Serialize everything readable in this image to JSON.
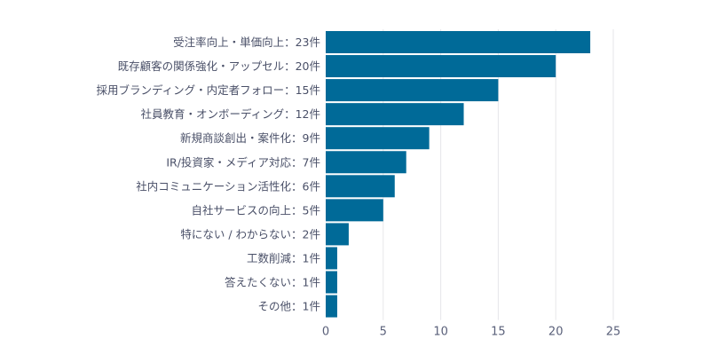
{
  "chart_data": {
    "type": "bar",
    "orientation": "horizontal",
    "title": "",
    "xlabel": "",
    "ylabel": "",
    "categories": [
      "受注率向上・単価向上：23件",
      "既存顧客の関係強化・アップセル：20件",
      "採用ブランディング・内定者フォロー：15件",
      "社員教育・オンボーディング：12件",
      "新規商談創出・案件化：9件",
      "IR/投資家・メディア対応：7件",
      "社内コミュニケーション活性化：6件",
      "自社サービスの向上：5件",
      "特にない / わからない：2件",
      "工数削減：1件",
      "答えたくない：1件",
      "その他：1件"
    ],
    "values": [
      23,
      20,
      15,
      12,
      9,
      7,
      6,
      5,
      2,
      1,
      1,
      1
    ],
    "xlim": [
      0,
      25
    ],
    "xticks": [
      "0",
      "5",
      "10",
      "15",
      "20",
      "25"
    ],
    "grid": true,
    "bar_color": "#006a98",
    "grid_color": "#e6e6ea"
  }
}
